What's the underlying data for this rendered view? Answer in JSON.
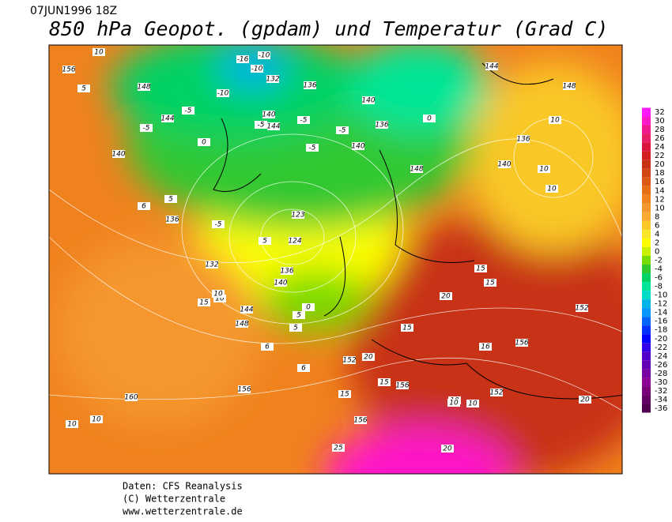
{
  "header": {
    "date": "07JUN1996 18Z",
    "title": "850 hPa Geopot. (gpdam) und  Temperatur (Grad C)"
  },
  "colorbar": {
    "ticks": [
      32,
      30,
      28,
      26,
      24,
      22,
      20,
      18,
      16,
      14,
      12,
      10,
      8,
      6,
      4,
      2,
      0,
      -2,
      -4,
      -6,
      -8,
      -10,
      -12,
      -14,
      -16,
      -18,
      -20,
      -22,
      -24,
      -26,
      -28,
      -30,
      -32,
      -34,
      -36
    ],
    "colors": [
      "#ff1aff",
      "#ff19c8",
      "#f0198c",
      "#e61e64",
      "#dc143c",
      "#d21e1e",
      "#c83214",
      "#d24614",
      "#dc5a14",
      "#e66e14",
      "#f0821e",
      "#f5962d",
      "#faaa32",
      "#fac828",
      "#fae628",
      "#ffff00",
      "#c8f000",
      "#78dc00",
      "#32c832",
      "#00d264",
      "#00e696",
      "#00dcc8",
      "#00b4e6",
      "#0096ff",
      "#0064ff",
      "#0032ff",
      "#0000ff",
      "#3200e6",
      "#5000c8",
      "#6400b4",
      "#7800a0",
      "#8c0096",
      "#780078",
      "#640064",
      "#500050"
    ]
  },
  "map_labels": [
    "10",
    "156",
    "148",
    "5",
    "144",
    "-5",
    "0",
    "140",
    "-10",
    "-16",
    "-10",
    "132",
    "136",
    "-10",
    "-5",
    "-5",
    "144",
    "140",
    "-5",
    "140",
    "136",
    "-5",
    "0",
    "140",
    "-5",
    "148",
    "10",
    "136",
    "10",
    "140",
    "10",
    "-5",
    "5",
    "136",
    "132",
    "123",
    "124",
    "136",
    "140",
    "144",
    "148",
    "10",
    "10",
    "15",
    "0",
    "5",
    "5",
    "6",
    "6",
    "152",
    "20",
    "15",
    "156",
    "15",
    "15",
    "10",
    "152",
    "16",
    "15",
    "156",
    "15",
    "20",
    "20",
    "152",
    "10",
    "10",
    "160",
    "156",
    "10",
    "10",
    "20",
    "25",
    "156",
    "144",
    "148",
    "5",
    "6"
  ],
  "footer": {
    "line1": "Daten: CFS Reanalysis",
    "line2": "(C) Wetterzentrale",
    "line3": "www.wetterzentrale.de"
  }
}
